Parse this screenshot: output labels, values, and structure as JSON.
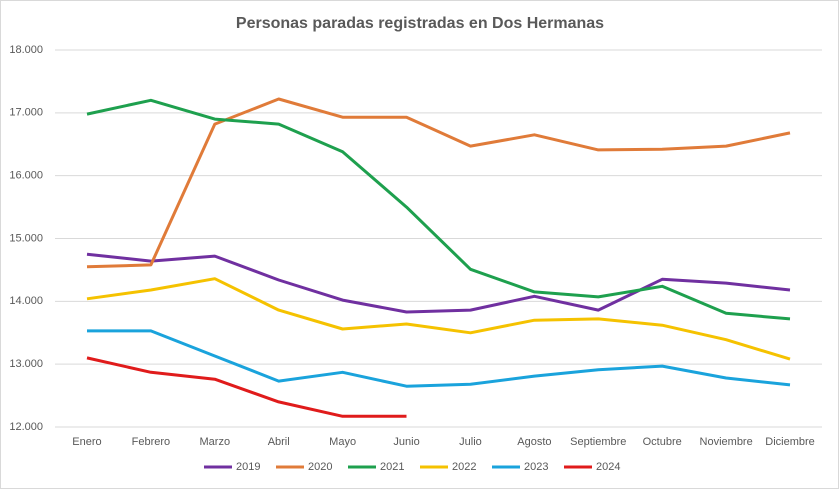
{
  "chart_data": {
    "type": "line",
    "title": "Personas paradas registradas en Dos Hermanas",
    "categories": [
      "Enero",
      "Febrero",
      "Marzo",
      "Abril",
      "Mayo",
      "Junio",
      "Julio",
      "Agosto",
      "Septiembre",
      "Octubre",
      "Noviembre",
      "Diciembre"
    ],
    "series": [
      {
        "name": "2019",
        "color": "#7030a0",
        "values": [
          14750,
          14640,
          14720,
          14340,
          14020,
          13830,
          13860,
          14080,
          13860,
          14350,
          14290,
          14180
        ]
      },
      {
        "name": "2020",
        "color": "#e07b39",
        "values": [
          14550,
          14580,
          16820,
          17220,
          16930,
          16930,
          16470,
          16650,
          16410,
          16420,
          16470,
          16680
        ]
      },
      {
        "name": "2021",
        "color": "#1ea04e",
        "values": [
          16980,
          17200,
          16900,
          16820,
          16380,
          15500,
          14510,
          14150,
          14070,
          14240,
          13810,
          13720
        ]
      },
      {
        "name": "2022",
        "color": "#f5c200",
        "values": [
          14040,
          14180,
          14360,
          13860,
          13560,
          13640,
          13500,
          13700,
          13720,
          13620,
          13390,
          13080
        ]
      },
      {
        "name": "2023",
        "color": "#1aa3dc",
        "values": [
          13530,
          13530,
          13130,
          12730,
          12870,
          12650,
          12680,
          12810,
          12910,
          12970,
          12780,
          12670
        ]
      },
      {
        "name": "2024",
        "color": "#e01b1b",
        "values": [
          13100,
          12870,
          12760,
          12400,
          12170,
          12170,
          null,
          null,
          null,
          null,
          null,
          null
        ]
      }
    ],
    "ylim": [
      12000,
      18000
    ],
    "yticks": [
      {
        "value": 12000,
        "label": "12.000"
      },
      {
        "value": 13000,
        "label": "13.000"
      },
      {
        "value": 14000,
        "label": "14.000"
      },
      {
        "value": 15000,
        "label": "15.000"
      },
      {
        "value": 16000,
        "label": "16.000"
      },
      {
        "value": 17000,
        "label": "17.000"
      },
      {
        "value": 18000,
        "label": "18.000"
      }
    ],
    "grid": true,
    "legend": "bottom"
  }
}
